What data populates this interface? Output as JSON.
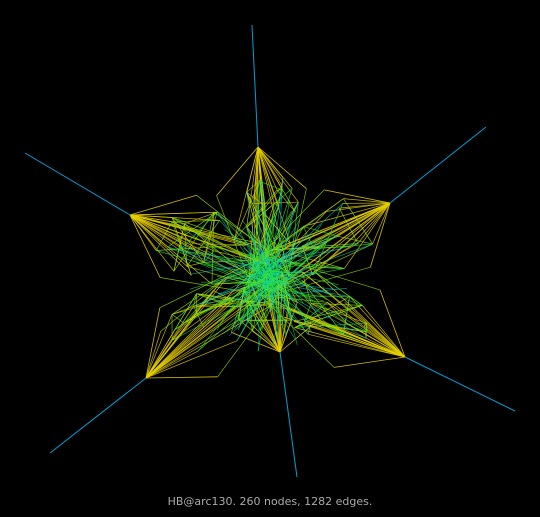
{
  "caption": "HB@arc130. 260 nodes, 1282 edges.",
  "colors": {
    "background": "#000000",
    "caption": "#aaaaaa",
    "hub_edge": "#00b0e8",
    "lobe_outer": "#e8d000",
    "lobe_mid": "#98e800",
    "lobe_inner": "#30e830",
    "center": "#00c8d8"
  }
}
